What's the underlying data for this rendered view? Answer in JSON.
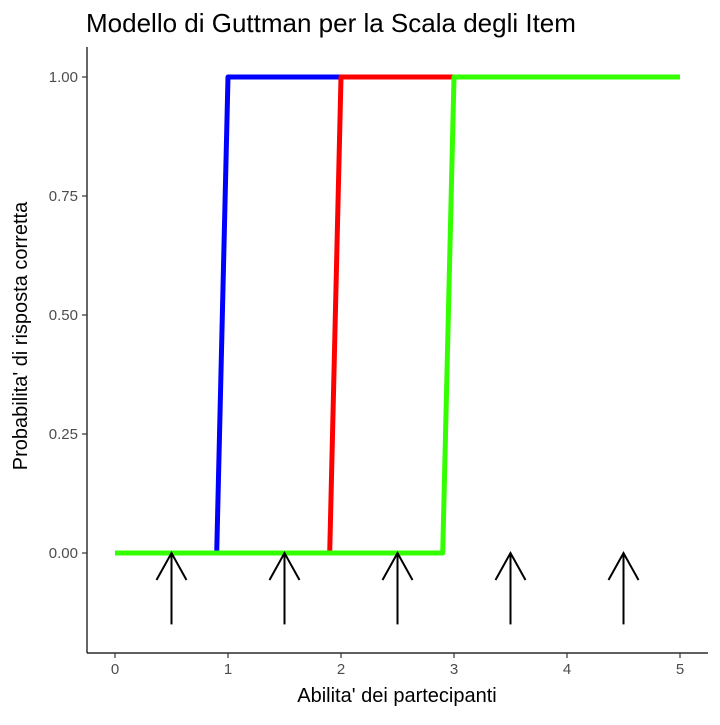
{
  "chart_data": {
    "type": "line",
    "title": "Modello di Guttman per la Scala degli Item",
    "xlabel": "Abilita' dei partecipanti",
    "ylabel": "Probabilita' di risposta corretta",
    "xlim": [
      -0.25,
      5.25
    ],
    "ylim": [
      -0.15,
      1.0
    ],
    "x_ticks": [
      0,
      1,
      2,
      3,
      4,
      5
    ],
    "x_tick_labels": [
      "0",
      "1",
      "2",
      "3",
      "4",
      "5"
    ],
    "y_ticks": [
      0,
      0.25,
      0.5,
      0.75,
      1.0
    ],
    "y_tick_labels": [
      "0.00",
      "0.25",
      "0.50",
      "0.75",
      "1.00"
    ],
    "grid": false,
    "series": [
      {
        "color": "#0000ff",
        "x": [
          0,
          0.9,
          1.0,
          5.0
        ],
        "y": [
          0,
          0,
          1,
          1
        ]
      },
      {
        "color": "#ff0000",
        "x": [
          0,
          1.9,
          2.0,
          5.0
        ],
        "y": [
          0,
          0,
          1,
          1
        ]
      },
      {
        "color": "#33ff00",
        "x": [
          0,
          2.9,
          3.0,
          5.0
        ],
        "y": [
          0,
          0,
          1,
          1
        ]
      }
    ],
    "arrows": {
      "color": "#000000",
      "x": [
        0.5,
        1.5,
        2.5,
        3.5,
        4.5
      ],
      "y_from": -0.15,
      "y_to": 0.0
    }
  }
}
